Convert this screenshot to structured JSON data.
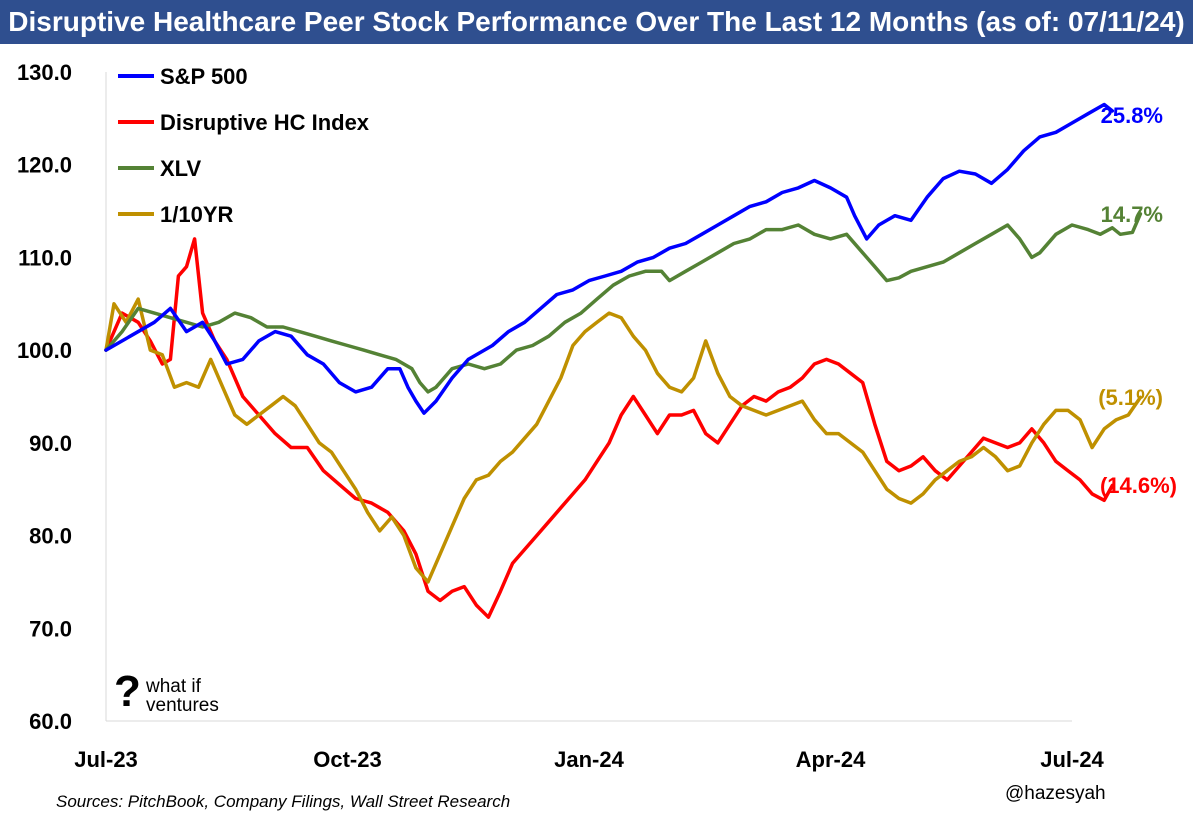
{
  "title": "Disruptive Healthcare Peer Stock Performance Over The Last 12 Months (as of: 07/11/24)",
  "sources": "Sources: PitchBook, Company Filings, Wall Street Research",
  "handle": "@hazesyah",
  "logo": {
    "mark": "?",
    "line1": "what if",
    "line2": "ventures"
  },
  "chart_data": {
    "type": "line",
    "title": "Disruptive Healthcare Peer Stock Performance Over The Last 12 Months (as of: 07/11/24)",
    "xlabel": "",
    "ylabel": "",
    "ylim": [
      60,
      130
    ],
    "xlim": [
      0,
      12
    ],
    "yticks": [
      "130.0",
      "120.0",
      "110.0",
      "100.0",
      "90.0",
      "80.0",
      "70.0",
      "60.0"
    ],
    "xticks": [
      {
        "x": 0,
        "label": "Jul-23"
      },
      {
        "x": 3,
        "label": "Oct-23"
      },
      {
        "x": 6,
        "label": "Jan-24"
      },
      {
        "x": 9,
        "label": "Apr-24"
      },
      {
        "x": 12,
        "label": "Jul-24"
      }
    ],
    "grid": false,
    "legend": "top-left",
    "series": [
      {
        "name": "S&P 500",
        "color": "#0000ff",
        "end_label": "25.8%",
        "points": [
          [
            0,
            100
          ],
          [
            0.3,
            101.5
          ],
          [
            0.6,
            103
          ],
          [
            0.8,
            104.5
          ],
          [
            1,
            102
          ],
          [
            1.2,
            103
          ],
          [
            1.35,
            101
          ],
          [
            1.5,
            98.5
          ],
          [
            1.7,
            99
          ],
          [
            1.9,
            101
          ],
          [
            2.1,
            102
          ],
          [
            2.3,
            101.5
          ],
          [
            2.5,
            99.5
          ],
          [
            2.7,
            98.5
          ],
          [
            2.9,
            96.5
          ],
          [
            3.1,
            95.5
          ],
          [
            3.3,
            96
          ],
          [
            3.5,
            98
          ],
          [
            3.65,
            98
          ],
          [
            3.75,
            96
          ],
          [
            3.85,
            94.5
          ],
          [
            3.95,
            93.2
          ],
          [
            4.1,
            94.5
          ],
          [
            4.3,
            97
          ],
          [
            4.5,
            99
          ],
          [
            4.8,
            100.5
          ],
          [
            5.0,
            102
          ],
          [
            5.2,
            103
          ],
          [
            5.4,
            104.5
          ],
          [
            5.6,
            106
          ],
          [
            5.8,
            106.5
          ],
          [
            6.0,
            107.5
          ],
          [
            6.2,
            108
          ],
          [
            6.4,
            108.5
          ],
          [
            6.6,
            109.5
          ],
          [
            6.8,
            110
          ],
          [
            7.0,
            111
          ],
          [
            7.2,
            111.5
          ],
          [
            7.4,
            112.5
          ],
          [
            7.6,
            113.5
          ],
          [
            7.8,
            114.5
          ],
          [
            8.0,
            115.5
          ],
          [
            8.2,
            116
          ],
          [
            8.4,
            117
          ],
          [
            8.6,
            117.5
          ],
          [
            8.8,
            118.3
          ],
          [
            9.0,
            117.5
          ],
          [
            9.2,
            116.5
          ],
          [
            9.3,
            114.5
          ],
          [
            9.45,
            112
          ],
          [
            9.6,
            113.5
          ],
          [
            9.8,
            114.5
          ],
          [
            10.0,
            114
          ],
          [
            10.2,
            116.5
          ],
          [
            10.4,
            118.5
          ],
          [
            10.6,
            119.3
          ],
          [
            10.8,
            119
          ],
          [
            11.0,
            118
          ],
          [
            11.2,
            119.5
          ],
          [
            11.4,
            121.5
          ],
          [
            11.6,
            123
          ],
          [
            11.8,
            123.5
          ],
          [
            12.0,
            124.5
          ],
          [
            12.2,
            125.5
          ],
          [
            12.4,
            126.5
          ],
          [
            12.5,
            125.8
          ]
        ]
      },
      {
        "name": "Disruptive HC Index",
        "color": "#ff0000",
        "end_label": "(14.6%)",
        "points": [
          [
            0,
            100
          ],
          [
            0.2,
            104
          ],
          [
            0.4,
            103
          ],
          [
            0.55,
            101
          ],
          [
            0.7,
            98.5
          ],
          [
            0.8,
            99
          ],
          [
            0.9,
            108
          ],
          [
            1.0,
            109
          ],
          [
            1.1,
            112
          ],
          [
            1.2,
            104
          ],
          [
            1.35,
            101
          ],
          [
            1.5,
            99
          ],
          [
            1.7,
            95
          ],
          [
            1.9,
            93
          ],
          [
            2.1,
            91
          ],
          [
            2.3,
            89.5
          ],
          [
            2.5,
            89.5
          ],
          [
            2.7,
            87
          ],
          [
            2.9,
            85.5
          ],
          [
            3.1,
            84
          ],
          [
            3.3,
            83.5
          ],
          [
            3.5,
            82.5
          ],
          [
            3.7,
            80.5
          ],
          [
            3.85,
            78
          ],
          [
            4.0,
            74
          ],
          [
            4.15,
            73
          ],
          [
            4.3,
            74
          ],
          [
            4.45,
            74.5
          ],
          [
            4.6,
            72.5
          ],
          [
            4.75,
            71.2
          ],
          [
            4.9,
            74
          ],
          [
            5.05,
            77
          ],
          [
            5.2,
            78.5
          ],
          [
            5.35,
            80
          ],
          [
            5.5,
            81.5
          ],
          [
            5.65,
            83
          ],
          [
            5.8,
            84.5
          ],
          [
            5.95,
            86
          ],
          [
            6.1,
            88
          ],
          [
            6.25,
            90
          ],
          [
            6.4,
            93
          ],
          [
            6.55,
            95
          ],
          [
            6.7,
            93
          ],
          [
            6.85,
            91
          ],
          [
            7.0,
            93
          ],
          [
            7.15,
            93
          ],
          [
            7.3,
            93.5
          ],
          [
            7.45,
            91
          ],
          [
            7.6,
            90
          ],
          [
            7.75,
            92
          ],
          [
            7.9,
            94
          ],
          [
            8.05,
            95
          ],
          [
            8.2,
            94.5
          ],
          [
            8.35,
            95.5
          ],
          [
            8.5,
            96
          ],
          [
            8.65,
            97
          ],
          [
            8.8,
            98.5
          ],
          [
            8.95,
            99
          ],
          [
            9.1,
            98.5
          ],
          [
            9.25,
            97.5
          ],
          [
            9.4,
            96.5
          ],
          [
            9.55,
            92
          ],
          [
            9.7,
            88
          ],
          [
            9.85,
            87
          ],
          [
            10.0,
            87.5
          ],
          [
            10.15,
            88.5
          ],
          [
            10.3,
            87
          ],
          [
            10.45,
            86
          ],
          [
            10.6,
            87.5
          ],
          [
            10.75,
            89
          ],
          [
            10.9,
            90.5
          ],
          [
            11.05,
            90
          ],
          [
            11.2,
            89.5
          ],
          [
            11.35,
            90
          ],
          [
            11.5,
            91.5
          ],
          [
            11.65,
            90
          ],
          [
            11.8,
            88
          ],
          [
            11.95,
            87
          ],
          [
            12.1,
            86
          ],
          [
            12.25,
            84.5
          ],
          [
            12.4,
            83.8
          ],
          [
            12.5,
            85.4
          ]
        ]
      },
      {
        "name": "XLV",
        "color": "#548235",
        "end_label": "14.7%",
        "points": [
          [
            0,
            100
          ],
          [
            0.2,
            102
          ],
          [
            0.4,
            104.5
          ],
          [
            0.6,
            104
          ],
          [
            0.8,
            103.5
          ],
          [
            1.0,
            103
          ],
          [
            1.2,
            102.5
          ],
          [
            1.4,
            103
          ],
          [
            1.6,
            104
          ],
          [
            1.8,
            103.5
          ],
          [
            2.0,
            102.5
          ],
          [
            2.2,
            102.5
          ],
          [
            2.4,
            102
          ],
          [
            2.6,
            101.5
          ],
          [
            2.8,
            101
          ],
          [
            3.0,
            100.5
          ],
          [
            3.2,
            100
          ],
          [
            3.4,
            99.5
          ],
          [
            3.6,
            99
          ],
          [
            3.8,
            98
          ],
          [
            3.9,
            96.5
          ],
          [
            4.0,
            95.5
          ],
          [
            4.1,
            96
          ],
          [
            4.3,
            98
          ],
          [
            4.5,
            98.5
          ],
          [
            4.7,
            98
          ],
          [
            4.9,
            98.5
          ],
          [
            5.1,
            100
          ],
          [
            5.3,
            100.5
          ],
          [
            5.5,
            101.5
          ],
          [
            5.7,
            103
          ],
          [
            5.9,
            104
          ],
          [
            6.1,
            105.5
          ],
          [
            6.3,
            107
          ],
          [
            6.5,
            108
          ],
          [
            6.7,
            108.5
          ],
          [
            6.9,
            108.5
          ],
          [
            7.0,
            107.5
          ],
          [
            7.2,
            108.5
          ],
          [
            7.4,
            109.5
          ],
          [
            7.6,
            110.5
          ],
          [
            7.8,
            111.5
          ],
          [
            8.0,
            112
          ],
          [
            8.2,
            113
          ],
          [
            8.4,
            113
          ],
          [
            8.6,
            113.5
          ],
          [
            8.8,
            112.5
          ],
          [
            9.0,
            112
          ],
          [
            9.2,
            112.5
          ],
          [
            9.4,
            110.5
          ],
          [
            9.55,
            109
          ],
          [
            9.7,
            107.5
          ],
          [
            9.85,
            107.8
          ],
          [
            10.0,
            108.5
          ],
          [
            10.2,
            109
          ],
          [
            10.4,
            109.5
          ],
          [
            10.6,
            110.5
          ],
          [
            10.8,
            111.5
          ],
          [
            11.0,
            112.5
          ],
          [
            11.2,
            113.5
          ],
          [
            11.35,
            112
          ],
          [
            11.5,
            110
          ],
          [
            11.6,
            110.5
          ],
          [
            11.8,
            112.5
          ],
          [
            12.0,
            113.5
          ],
          [
            12.2,
            113
          ],
          [
            12.35,
            112.5
          ],
          [
            12.5,
            113.2
          ],
          [
            12.6,
            112.5
          ],
          [
            12.75,
            112.7
          ],
          [
            12.85,
            114.7
          ]
        ]
      },
      {
        "name": "1/10YR",
        "color": "#bf9000",
        "end_label": "(5.1%)",
        "points": [
          [
            0,
            100
          ],
          [
            0.1,
            105
          ],
          [
            0.25,
            103
          ],
          [
            0.4,
            105.5
          ],
          [
            0.55,
            100
          ],
          [
            0.7,
            99.5
          ],
          [
            0.85,
            96
          ],
          [
            1.0,
            96.5
          ],
          [
            1.15,
            96
          ],
          [
            1.3,
            99
          ],
          [
            1.45,
            96
          ],
          [
            1.6,
            93
          ],
          [
            1.75,
            92
          ],
          [
            1.9,
            93
          ],
          [
            2.05,
            94
          ],
          [
            2.2,
            95
          ],
          [
            2.35,
            94
          ],
          [
            2.5,
            92
          ],
          [
            2.65,
            90
          ],
          [
            2.8,
            89
          ],
          [
            2.95,
            87
          ],
          [
            3.1,
            85
          ],
          [
            3.25,
            82.5
          ],
          [
            3.4,
            80.5
          ],
          [
            3.55,
            82
          ],
          [
            3.7,
            80
          ],
          [
            3.85,
            76.5
          ],
          [
            4.0,
            75
          ],
          [
            4.15,
            78
          ],
          [
            4.3,
            81
          ],
          [
            4.45,
            84
          ],
          [
            4.6,
            86
          ],
          [
            4.75,
            86.5
          ],
          [
            4.9,
            88
          ],
          [
            5.05,
            89
          ],
          [
            5.2,
            90.5
          ],
          [
            5.35,
            92
          ],
          [
            5.5,
            94.5
          ],
          [
            5.65,
            97
          ],
          [
            5.8,
            100.5
          ],
          [
            5.95,
            102
          ],
          [
            6.1,
            103
          ],
          [
            6.25,
            104
          ],
          [
            6.4,
            103.5
          ],
          [
            6.55,
            101.5
          ],
          [
            6.7,
            100
          ],
          [
            6.85,
            97.5
          ],
          [
            7.0,
            96
          ],
          [
            7.15,
            95.5
          ],
          [
            7.3,
            97
          ],
          [
            7.45,
            101
          ],
          [
            7.6,
            97.5
          ],
          [
            7.75,
            95
          ],
          [
            7.9,
            94
          ],
          [
            8.05,
            93.5
          ],
          [
            8.2,
            93
          ],
          [
            8.35,
            93.5
          ],
          [
            8.5,
            94
          ],
          [
            8.65,
            94.5
          ],
          [
            8.8,
            92.5
          ],
          [
            8.95,
            91
          ],
          [
            9.1,
            91
          ],
          [
            9.25,
            90
          ],
          [
            9.4,
            89
          ],
          [
            9.55,
            87
          ],
          [
            9.7,
            85
          ],
          [
            9.85,
            84
          ],
          [
            10.0,
            83.5
          ],
          [
            10.15,
            84.5
          ],
          [
            10.3,
            86
          ],
          [
            10.45,
            87
          ],
          [
            10.6,
            88
          ],
          [
            10.75,
            88.5
          ],
          [
            10.9,
            89.5
          ],
          [
            11.05,
            88.5
          ],
          [
            11.2,
            87
          ],
          [
            11.35,
            87.5
          ],
          [
            11.5,
            90
          ],
          [
            11.65,
            92
          ],
          [
            11.8,
            93.5
          ],
          [
            11.95,
            93.5
          ],
          [
            12.1,
            92.5
          ],
          [
            12.25,
            89.5
          ],
          [
            12.4,
            91.5
          ],
          [
            12.55,
            92.5
          ],
          [
            12.7,
            93
          ],
          [
            12.85,
            94.9
          ]
        ]
      }
    ]
  }
}
